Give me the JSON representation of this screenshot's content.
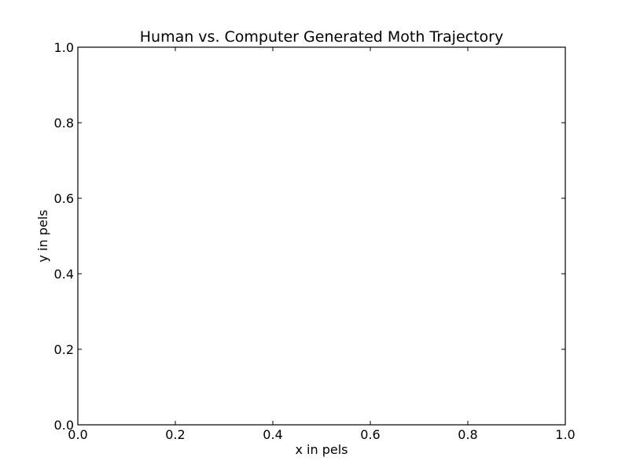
{
  "chart_data": {
    "type": "line",
    "title": "Human vs. Computer Generated Moth Trajectory",
    "xlabel": "x in pels",
    "ylabel": "y in pels",
    "xlim": [
      0.0,
      1.0
    ],
    "ylim": [
      0.0,
      1.0
    ],
    "x_ticks": [
      "0.0",
      "0.2",
      "0.4",
      "0.6",
      "0.8",
      "1.0"
    ],
    "y_ticks": [
      "0.0",
      "0.2",
      "0.4",
      "0.6",
      "0.8",
      "1.0"
    ],
    "series": [],
    "grid": false
  },
  "colors": {
    "axes": "#000000",
    "background": "#ffffff"
  }
}
